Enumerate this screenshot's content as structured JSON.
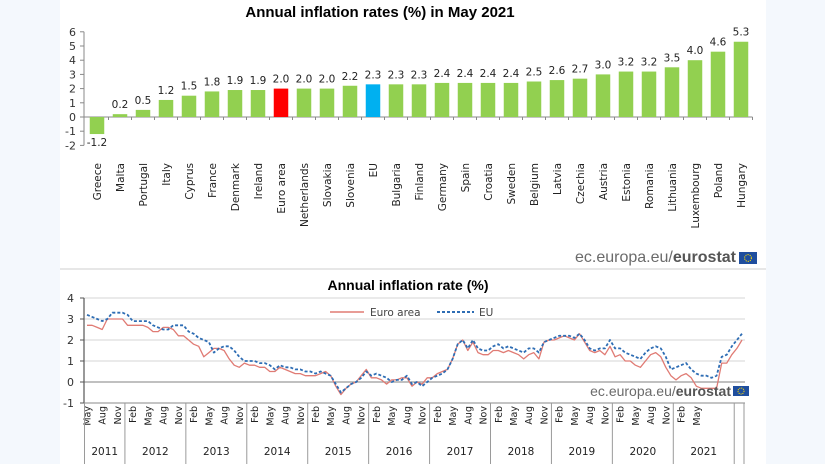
{
  "chart_data": [
    {
      "type": "bar",
      "title": "Annual inflation rates (%) in May 2021",
      "xlabel": "",
      "ylabel": "",
      "ylim": [
        -2,
        6
      ],
      "yticks": [
        "6",
        "5",
        "4",
        "3",
        "2",
        "1",
        "0",
        "-1",
        "-2"
      ],
      "ytick_values": [
        6,
        5,
        4,
        3,
        2,
        1,
        0,
        -1,
        -2
      ],
      "grid": false,
      "categories": [
        "Greece",
        "Malta",
        "Portugal",
        "Italy",
        "Cyprus",
        "France",
        "Denmark",
        "Ireland",
        "Euro area",
        "Netherlands",
        "Slovakia",
        "Slovenia",
        "EU",
        "Bulgaria",
        "Finland",
        "Germany",
        "Spain",
        "Croatia",
        "Sweden",
        "Belgium",
        "Latvia",
        "Czechia",
        "Austria",
        "Estonia",
        "Romania",
        "Lithuania",
        "Luxembourg",
        "Poland",
        "Hungary"
      ],
      "values": [
        -1.2,
        0.2,
        0.5,
        1.2,
        1.5,
        1.8,
        1.9,
        1.9,
        2.0,
        2.0,
        2.0,
        2.2,
        2.3,
        2.3,
        2.3,
        2.4,
        2.4,
        2.4,
        2.4,
        2.5,
        2.6,
        2.7,
        3.0,
        3.2,
        3.2,
        3.5,
        4.0,
        4.6,
        5.3
      ],
      "labels": [
        "-1.2",
        "0.2",
        "0.5",
        "1.2",
        "1.5",
        "1.8",
        "1.9",
        "1.9",
        "2.0",
        "2.0",
        "2.0",
        "2.2",
        "2.3",
        "2.3",
        "2.3",
        "2.4",
        "2.4",
        "2.4",
        "2.4",
        "2.5",
        "2.6",
        "2.7",
        "3.0",
        "3.2",
        "3.2",
        "3.5",
        "4.0",
        "4.6",
        "5.3"
      ],
      "colors": {
        "default": "#92d050",
        "Euro area": "#ff0000",
        "EU": "#00b0f0"
      },
      "source": {
        "prefix": "ec.europa.eu/",
        "brand": "eurostat"
      }
    },
    {
      "type": "line",
      "title": "Annual inflation rate (%)",
      "xlabel": "",
      "ylabel": "",
      "ylim": [
        -1,
        4
      ],
      "yticks": [
        "4",
        "3",
        "2",
        "1",
        "0",
        "-1"
      ],
      "ytick_values": [
        4,
        3,
        2,
        1,
        0,
        -1
      ],
      "grid": true,
      "legend_position": "top-center",
      "x_start": "2011-05",
      "x_end": "2021-05",
      "month_labels": [
        "May",
        "Aug",
        "Nov",
        "Feb",
        "May",
        "Aug",
        "Nov",
        "Feb",
        "May",
        "Aug",
        "Nov",
        "Feb",
        "May",
        "Aug",
        "Nov",
        "Feb",
        "May",
        "Aug",
        "Nov",
        "Feb",
        "May",
        "Aug",
        "Nov",
        "Feb",
        "May",
        "Aug",
        "Nov",
        "Feb",
        "May",
        "Aug",
        "Nov",
        "Feb",
        "May",
        "Aug",
        "Nov",
        "Feb",
        "May",
        "Aug",
        "Nov",
        "Feb",
        "May"
      ],
      "years": [
        "2011",
        "2012",
        "2013",
        "2014",
        "2015",
        "2016",
        "2017",
        "2018",
        "2019",
        "2020",
        "2021"
      ],
      "series": [
        {
          "name": "Euro area",
          "color": "#e07b74",
          "style": "solid",
          "values": [
            2.7,
            2.7,
            2.6,
            2.5,
            3.0,
            3.0,
            3.0,
            3.0,
            2.7,
            2.7,
            2.7,
            2.7,
            2.6,
            2.4,
            2.4,
            2.6,
            2.6,
            2.5,
            2.2,
            2.2,
            2.0,
            1.8,
            1.7,
            1.2,
            1.4,
            1.6,
            1.6,
            1.5,
            1.1,
            0.8,
            0.7,
            0.9,
            0.8,
            0.8,
            0.7,
            0.7,
            0.5,
            0.5,
            0.7,
            0.6,
            0.5,
            0.4,
            0.4,
            0.3,
            0.3,
            0.3,
            0.4,
            0.5,
            0.3,
            -0.2,
            -0.6,
            -0.3,
            -0.1,
            0.0,
            0.3,
            0.6,
            0.2,
            0.2,
            0.1,
            -0.1,
            0.1,
            0.1,
            0.2,
            0.2,
            -0.2,
            0.0,
            -0.1,
            0.2,
            0.2,
            0.4,
            0.5,
            0.6,
            1.1,
            1.8,
            2.0,
            1.5,
            1.9,
            1.4,
            1.3,
            1.3,
            1.5,
            1.5,
            1.4,
            1.5,
            1.4,
            1.3,
            1.1,
            1.3,
            1.4,
            1.1,
            1.9,
            2.0,
            2.0,
            2.1,
            2.2,
            2.1,
            2.0,
            2.3,
            1.9,
            1.5,
            1.4,
            1.5,
            1.3,
            1.7,
            1.2,
            1.3,
            1.0,
            1.0,
            0.8,
            0.7,
            1.0,
            1.3,
            1.4,
            1.2,
            0.7,
            0.3,
            0.1,
            0.3,
            0.4,
            0.2,
            -0.2,
            -0.3,
            -0.3,
            -0.3,
            -0.3,
            0.9,
            0.9,
            1.3,
            1.6,
            2.0
          ]
        },
        {
          "name": "EU",
          "color": "#2e6db4",
          "style": "dashed",
          "values": [
            3.2,
            3.1,
            3.0,
            2.9,
            3.0,
            3.3,
            3.3,
            3.3,
            3.2,
            2.9,
            2.9,
            2.9,
            2.9,
            2.7,
            2.6,
            2.5,
            2.5,
            2.7,
            2.7,
            2.7,
            2.4,
            2.3,
            2.1,
            2.0,
            1.9,
            1.4,
            1.6,
            1.7,
            1.7,
            1.5,
            1.2,
            1.0,
            1.0,
            1.0,
            0.9,
            0.9,
            0.8,
            0.6,
            0.8,
            0.7,
            0.7,
            0.6,
            0.6,
            0.5,
            0.5,
            0.4,
            0.5,
            0.4,
            0.3,
            -0.1,
            -0.5,
            -0.3,
            -0.1,
            0.0,
            0.2,
            0.5,
            0.3,
            0.4,
            0.3,
            0.2,
            0.0,
            0.1,
            0.1,
            0.3,
            -0.1,
            0.0,
            -0.2,
            0.0,
            0.2,
            0.3,
            0.4,
            0.6,
            1.1,
            1.8,
            2.0,
            1.6,
            2.0,
            1.6,
            1.5,
            1.5,
            1.7,
            1.8,
            1.6,
            1.7,
            1.6,
            1.5,
            1.4,
            1.6,
            1.6,
            1.4,
            1.9,
            2.0,
            2.1,
            2.2,
            2.2,
            2.2,
            2.1,
            2.3,
            2.0,
            1.6,
            1.5,
            1.6,
            1.6,
            2.0,
            1.6,
            1.6,
            1.4,
            1.3,
            1.2,
            1.1,
            1.4,
            1.6,
            1.7,
            1.6,
            1.2,
            0.6,
            0.7,
            0.8,
            0.9,
            0.6,
            0.4,
            0.3,
            0.3,
            0.2,
            0.3,
            1.2,
            1.3,
            1.7,
            2.0,
            2.3
          ]
        }
      ],
      "source": {
        "prefix": "ec.europa.eu/",
        "brand": "eurostat"
      }
    }
  ]
}
